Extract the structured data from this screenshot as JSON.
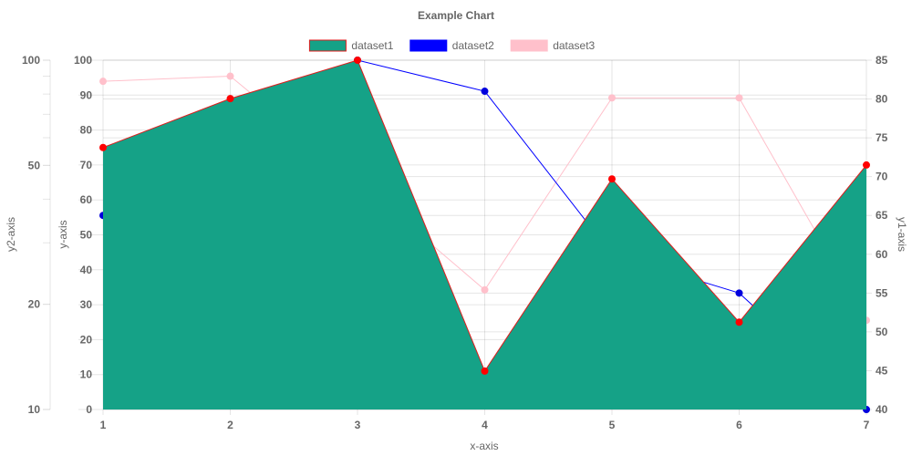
{
  "chart_data": {
    "type": "line",
    "title": "Example Chart",
    "xlabel": "x-axis",
    "x": [
      1,
      2,
      3,
      4,
      5,
      6,
      7
    ],
    "axes": {
      "y": {
        "label": "y-axis",
        "min": 0,
        "max": 100,
        "ticks": [
          0,
          10,
          20,
          30,
          40,
          50,
          60,
          70,
          80,
          90,
          100
        ],
        "position": "left"
      },
      "y1": {
        "label": "y1-axis",
        "min": 40,
        "max": 85,
        "ticks": [
          40,
          45,
          50,
          55,
          60,
          65,
          70,
          75,
          80,
          85
        ],
        "position": "right"
      },
      "y2": {
        "label": "y2-axis",
        "min": 10,
        "max": 100,
        "scale": "log",
        "ticks": [
          10,
          20,
          50,
          100
        ],
        "position": "left"
      }
    },
    "grid": true,
    "legend_position": "top",
    "series": [
      {
        "name": "dataset1",
        "axis": "y",
        "fill": true,
        "fill_color": "#15a287",
        "line_color": "#e01b1b",
        "point_color": "#ff0000",
        "values": [
          75,
          89,
          100,
          11,
          66,
          25,
          70
        ]
      },
      {
        "name": "dataset2",
        "axis": "y1",
        "fill": false,
        "line_color": "#0000ff",
        "point_color": "#0000dd",
        "values": [
          65,
          78,
          85,
          81,
          60,
          55,
          40
        ]
      },
      {
        "name": "dataset3",
        "axis": "y2",
        "fill": false,
        "line_color": "#ffc0cb",
        "point_color": "#ffc0cb",
        "values": [
          87,
          90,
          45,
          22,
          78,
          78,
          18
        ]
      }
    ]
  }
}
